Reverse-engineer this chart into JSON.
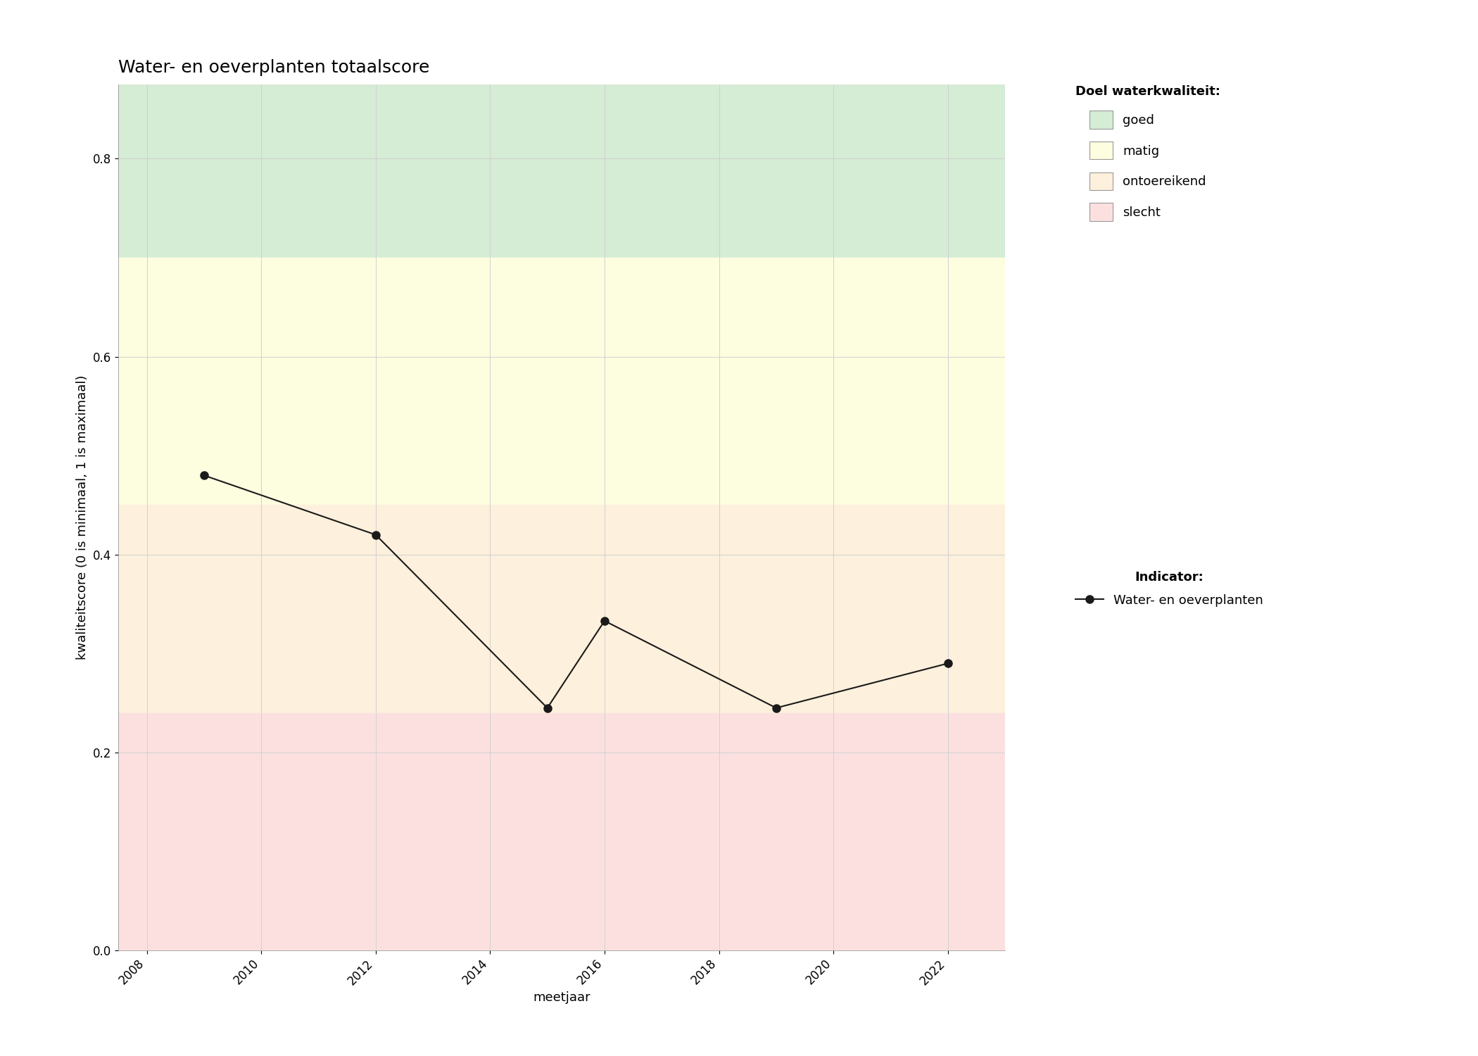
{
  "title": "Water- en oeverplanten totaalscore",
  "xlabel": "meetjaar",
  "ylabel": "kwaliteitscore (0 is minimaal, 1 is maximaal)",
  "years": [
    2009,
    2012,
    2015,
    2016,
    2019,
    2022
  ],
  "scores": [
    0.48,
    0.42,
    0.245,
    0.333,
    0.245,
    0.29
  ],
  "xlim": [
    2007.5,
    2023.0
  ],
  "ylim": [
    0.0,
    0.875
  ],
  "xticks": [
    2008,
    2010,
    2012,
    2014,
    2016,
    2018,
    2020,
    2022
  ],
  "yticks": [
    0.0,
    0.2,
    0.4,
    0.6,
    0.8
  ],
  "bg_color": "#ffffff",
  "plot_bg_color": "#ffffff",
  "zone_goed_min": 0.7,
  "zone_goed_max": 0.875,
  "zone_goed_color": "#d5ecd5",
  "zone_matig_min": 0.45,
  "zone_matig_max": 0.7,
  "zone_matig_color": "#fdfde0",
  "zone_ontoereikend_min": 0.24,
  "zone_ontoereikend_max": 0.45,
  "zone_ontoereikend_color": "#fdf0dc",
  "zone_slecht_min": 0.0,
  "zone_slecht_max": 0.24,
  "zone_slecht_color": "#fce0e0",
  "line_color": "#1a1a1a",
  "marker_color": "#1a1a1a",
  "marker_size": 8,
  "line_width": 1.5,
  "grid_color": "#d0d0d0",
  "legend_title_doel": "Doel waterkwaliteit:",
  "legend_title_indicator": "Indicator:",
  "legend_goed": "goed",
  "legend_matig": "matig",
  "legend_ontoereikend": "ontoereikend",
  "legend_slecht": "slecht",
  "legend_indicator": "Water- en oeverplanten",
  "title_fontsize": 18,
  "label_fontsize": 13,
  "tick_fontsize": 12,
  "legend_fontsize": 13,
  "legend_title_fontsize": 13
}
